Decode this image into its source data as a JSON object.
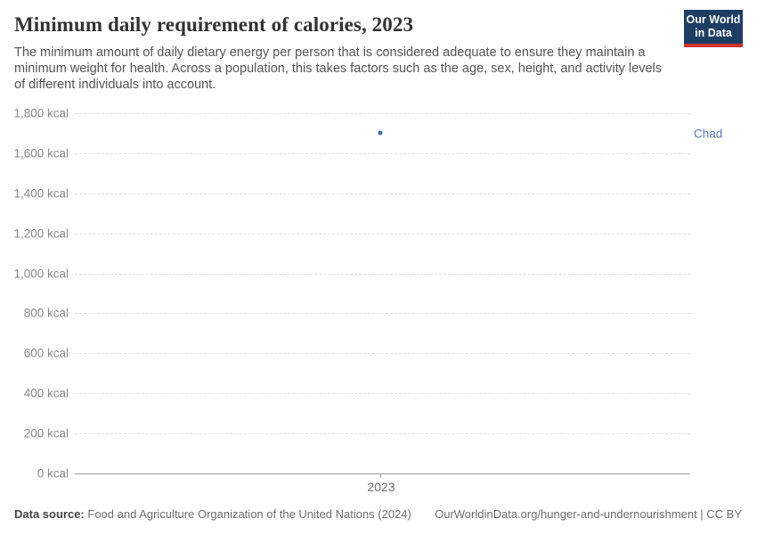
{
  "header": {
    "title": "Minimum daily requirement of calories, 2023",
    "subtitle": "The minimum amount of daily dietary energy per person that is considered adequate to ensure they maintain a minimum weight for health. Across a population, this takes factors such as the age, sex, height, and activity levels of different individuals into account.",
    "logo_line1": "Our World",
    "logo_line2": "in Data"
  },
  "colors": {
    "logo_navy": "#1d3d63",
    "logo_red": "#d0342c",
    "point_blue": "#4268ae",
    "label_blue": "#5b7ac2",
    "gridline": "#dedede",
    "axis": "#a1a1a1"
  },
  "chart_data": {
    "type": "scatter",
    "title": "Minimum daily requirement of calories, 2023",
    "x": [
      2023
    ],
    "xticks": [
      2023
    ],
    "series": [
      {
        "name": "Chad",
        "values": [
          1700
        ],
        "color": "#4268ae",
        "label_color": "#5b7ac2"
      }
    ],
    "xlabel": "",
    "ylabel": "",
    "ylim": [
      0,
      1800
    ],
    "ytick_step": 200,
    "ytick_suffix": " kcal",
    "grid": "horizontal-dashed",
    "legend_position": "right-of-plot"
  },
  "footer": {
    "source_label": "Data source:",
    "source_value": "Food and Agriculture Organization of the United Nations (2024)",
    "link": "OurWorldinData.org/hunger-and-undernourishment | CC BY"
  }
}
